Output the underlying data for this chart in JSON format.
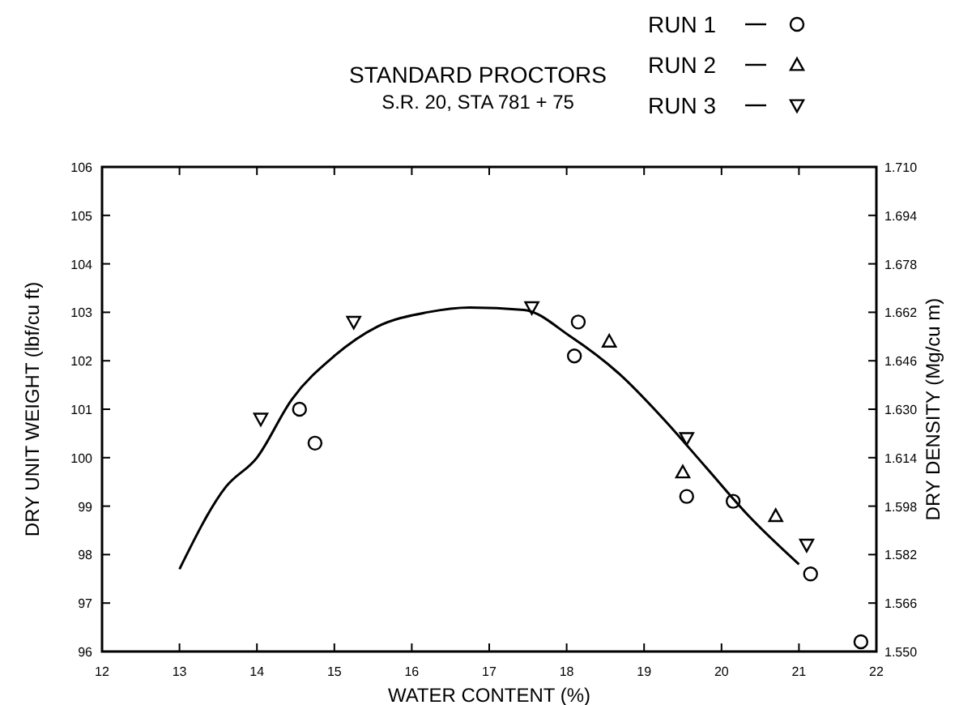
{
  "chart_data": {
    "type": "scatter",
    "title": "STANDARD PROCTORS",
    "subtitle": "S.R. 20, STA 781 + 75",
    "xlabel": "WATER CONTENT (%)",
    "ylabel": "DRY UNIT WEIGHT (lbf/cu ft)",
    "y2label": "DRY DENSITY (Mg/cu m)",
    "xlim": [
      12,
      22
    ],
    "xticks": [
      12,
      13,
      14,
      15,
      16,
      17,
      18,
      19,
      20,
      21,
      22
    ],
    "ylim": [
      96,
      106
    ],
    "yticks": [
      96,
      97,
      98,
      99,
      100,
      101,
      102,
      103,
      104,
      105,
      106
    ],
    "y2lim": [
      1.55,
      1.71
    ],
    "y2ticks": [
      {
        "value": 1.55,
        "label": "1.550"
      },
      1.566,
      1.582,
      1.598,
      1.614,
      {
        "value": 1.63,
        "label": "1.630"
      },
      1.646,
      1.662,
      1.678,
      1.694,
      {
        "value": 1.71,
        "label": "1.710"
      }
    ],
    "legend": "top right",
    "grid": false,
    "series": [
      {
        "type": "line",
        "color": "#000000",
        "marker": "none",
        "line_style": "solid",
        "x": [
          13,
          13.6,
          14,
          14.45,
          15,
          15.55,
          16.2,
          16.75,
          17.45,
          18.05,
          18.7,
          19.25,
          19.8,
          20.35,
          21
        ],
        "values": [
          97.7,
          99.4,
          100,
          101.2,
          102.1,
          102.7,
          103,
          103.1,
          103.05,
          102.5,
          101.7,
          100.8,
          99.8,
          98.8,
          97.8
        ]
      },
      {
        "name": "RUN 1",
        "color": "#000000",
        "marker": "circle",
        "x": [
          14.55,
          14.75,
          18.1,
          18.15,
          19.55,
          20.15,
          21.15,
          21.8
        ],
        "values": [
          101,
          100.3,
          102.1,
          102.8,
          99.2,
          99.1,
          97.6,
          96.2
        ]
      },
      {
        "name": "RUN 2",
        "color": "#000000",
        "marker": "triangle",
        "x": [
          18.55,
          19.5,
          20.7
        ],
        "values": [
          102.4,
          99.7,
          98.8
        ]
      },
      {
        "name": "RUN 3",
        "color": "#000000",
        "marker": "triangle-down",
        "x": [
          14.05,
          15.25,
          17.55,
          19.55,
          21.1
        ],
        "values": [
          100.8,
          102.8,
          103.1,
          100.4,
          98.2
        ]
      }
    ]
  }
}
